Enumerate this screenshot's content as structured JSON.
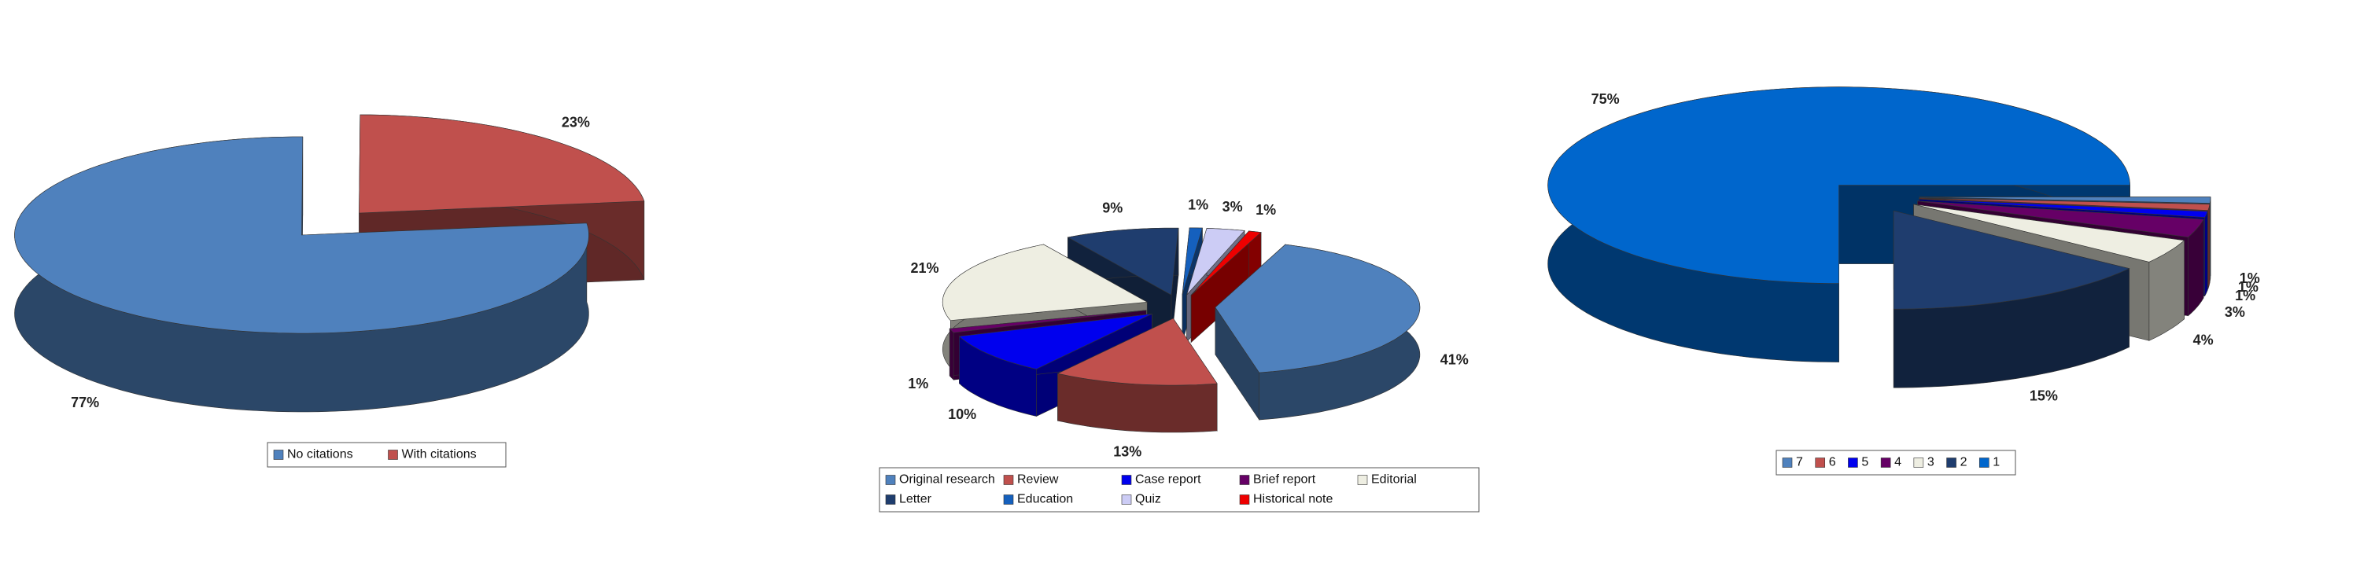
{
  "chart_data": [
    {
      "type": "pie",
      "categories": [
        "No citations",
        "With  citations"
      ],
      "values": [
        77,
        23
      ],
      "value_labels": [
        "77%",
        "23%"
      ],
      "colors": [
        "#4f81bd",
        "#c0504d"
      ],
      "legend": "bottom"
    },
    {
      "type": "pie",
      "categories": [
        "Original research",
        "Review",
        "Case report",
        "Brief report",
        "Editorial",
        "Letter",
        "Education",
        "Quiz",
        "Historical note"
      ],
      "values": [
        41,
        13,
        10,
        1,
        21,
        9,
        1,
        3,
        1
      ],
      "value_labels": [
        "41%",
        "13%",
        "10%",
        "1%",
        "21%",
        "9%",
        "1%",
        "3%",
        "1%"
      ],
      "colors": [
        "#4f81bd",
        "#c0504d",
        "#0000ee",
        "#660066",
        "#eeeee2",
        "#1f3d6e",
        "#1560bd",
        "#ccccf5",
        "#ee0000"
      ],
      "legend": "bottom"
    },
    {
      "type": "pie",
      "categories": [
        "7",
        "6",
        "5",
        "4",
        "3",
        "2",
        "1"
      ],
      "values": [
        1,
        1,
        1,
        3,
        4,
        15,
        75
      ],
      "value_labels": [
        "1%",
        "1%",
        "1%",
        "3%",
        "4%",
        "15%",
        "75%"
      ],
      "colors": [
        "#4f81bd",
        "#c0504d",
        "#0000ee",
        "#660066",
        "#eeeee2",
        "#1f3d6e",
        "#0066cc"
      ],
      "legend": "bottom"
    }
  ]
}
